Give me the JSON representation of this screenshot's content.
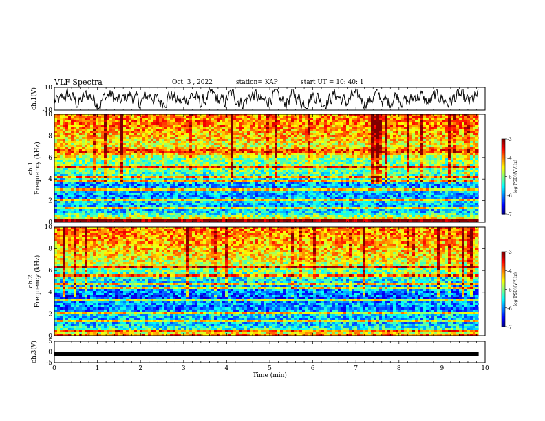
{
  "header": {
    "title": "VLF Spectra",
    "date": "Oct. 3 , 2022",
    "station": "station= KAP",
    "start": "start UT = 10: 40: 1"
  },
  "chart_data": [
    {
      "type": "line",
      "panel": "ch1-waveform",
      "ylabel": "ch.1(V)",
      "ylim": [
        -10,
        10
      ],
      "yticks": [
        "10",
        "-10"
      ],
      "xlim": [
        0,
        10
      ],
      "x_end": 9.85,
      "series": [
        {
          "values": "noisy waveform oscillating roughly between -8 and 8 V"
        }
      ]
    },
    {
      "type": "heatmap",
      "panel": "ch1-spectrogram",
      "ylabel": "ch.1\nFrequency (kHz)",
      "ylim": [
        0,
        10
      ],
      "yticks": [
        "0",
        "2",
        "4",
        "6",
        "8",
        "10"
      ],
      "xlim": [
        0,
        9.85
      ],
      "colorbar": {
        "label": "log(PSD)(V²/Hz)",
        "range": [
          -7,
          -3
        ],
        "ticks": [
          "-3",
          "-4",
          "-5",
          "-6",
          "-7"
        ]
      },
      "spectral_lines_khz": [
        0.3,
        1.4,
        2.2,
        3.2,
        3.8,
        4.3,
        5.1,
        6.6
      ],
      "mean_log_psd_vs_khz": [
        [
          0,
          -3.6
        ],
        [
          0.5,
          -4.6
        ],
        [
          1.0,
          -5.6
        ],
        [
          1.5,
          -5.9
        ],
        [
          2.0,
          -5.6
        ],
        [
          2.5,
          -5.9
        ],
        [
          3.0,
          -5.6
        ],
        [
          3.5,
          -5.9
        ],
        [
          4.0,
          -5.5
        ],
        [
          5.0,
          -5.0
        ],
        [
          6.0,
          -5.0
        ],
        [
          6.6,
          -3.6
        ],
        [
          7.0,
          -4.6
        ],
        [
          8.0,
          -4.3
        ],
        [
          9.0,
          -4.0
        ],
        [
          10.0,
          -4.0
        ]
      ]
    },
    {
      "type": "heatmap",
      "panel": "ch2-spectrogram",
      "ylabel": "ch.2\nFrequency (kHz)",
      "ylim": [
        0,
        10
      ],
      "yticks": [
        "0",
        "2",
        "4",
        "6",
        "8",
        "10"
      ],
      "xlim": [
        0,
        9.85
      ],
      "colorbar": {
        "label": "log(PSD)(V²/Hz)",
        "range": [
          -7,
          -3
        ],
        "ticks": [
          "-3",
          "-4",
          "-5",
          "-6",
          "-7"
        ]
      },
      "spectral_lines_khz": [
        0.4,
        1.4,
        2.2,
        3.3,
        4.4,
        4.8,
        5.6,
        6.3
      ],
      "mean_log_psd_vs_khz": [
        [
          0,
          -3.6
        ],
        [
          0.5,
          -5.2
        ],
        [
          1.0,
          -5.6
        ],
        [
          1.5,
          -5.8
        ],
        [
          2.0,
          -5.6
        ],
        [
          2.5,
          -6.0
        ],
        [
          3.0,
          -5.8
        ],
        [
          3.5,
          -6.2
        ],
        [
          4.0,
          -6.0
        ],
        [
          5.0,
          -5.6
        ],
        [
          6.0,
          -5.0
        ],
        [
          7.0,
          -4.5
        ],
        [
          8.0,
          -4.3
        ],
        [
          9.0,
          -4.1
        ],
        [
          10.0,
          -4.0
        ]
      ]
    },
    {
      "type": "line",
      "panel": "ch3-waveform",
      "ylabel": "ch.3(V)",
      "xlabel": "Time (min)",
      "ylim": [
        -5,
        5
      ],
      "yticks": [
        "5",
        "0",
        "-5"
      ],
      "xlim": [
        0,
        10
      ],
      "xticks": [
        "0",
        "1",
        "2",
        "3",
        "4",
        "5",
        "6",
        "7",
        "8",
        "9",
        "10"
      ],
      "series": [
        {
          "values": "constant band near -1 V",
          "level": -1
        }
      ]
    }
  ]
}
